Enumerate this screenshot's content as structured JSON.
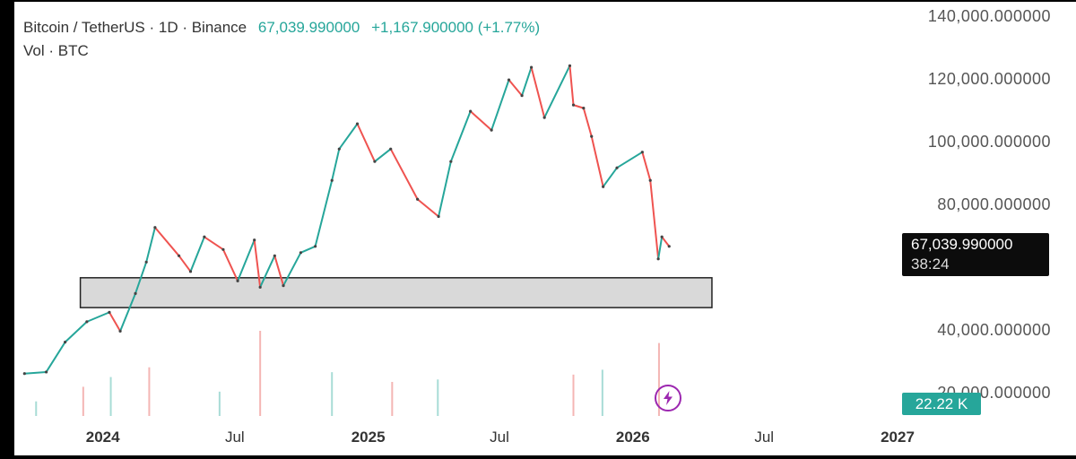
{
  "header": {
    "symbol": "Bitcoin / TetherUS · 1D · Binance",
    "last_price": "67,039.990000",
    "change": "+1,167.900000 (+1.77%)",
    "volume_label": "Vol · BTC"
  },
  "badges": {
    "price": "67,039.990000",
    "countdown": "38:24",
    "volume": "22.22 K"
  },
  "colors": {
    "up": "#26a69a",
    "down": "#ef5350",
    "zone_fill": "#d9d9d9",
    "zone_stroke": "#222222",
    "bolt": "#9c27b0"
  },
  "icons": {
    "bolt": "lightning-bolt-icon"
  },
  "chart_data": {
    "type": "line",
    "title": "",
    "xlabel": "",
    "ylabel": "",
    "y_ticks": [
      "140,000.000000",
      "120,000.000000",
      "100,000.000000",
      "80,000.000000",
      "40,000.000000",
      "20,000.000000"
    ],
    "x_ticks": [
      "2024",
      "Jul",
      "2025",
      "Jul",
      "2026",
      "Jul",
      "2027"
    ],
    "ylim": [
      13000,
      142000
    ],
    "xlim": [
      "2023-09-01",
      "2027-01-01"
    ],
    "series": [
      {
        "x": [
          "2023-09-15",
          "2023-10-15",
          "2023-11-10",
          "2023-12-10",
          "2024-01-10",
          "2024-01-25",
          "2024-02-15",
          "2024-03-01",
          "2024-03-13",
          "2024-04-15",
          "2024-05-01",
          "2024-05-20",
          "2024-06-15",
          "2024-07-05",
          "2024-07-28",
          "2024-08-05",
          "2024-08-25",
          "2024-09-06",
          "2024-09-30",
          "2024-10-20",
          "2024-11-12",
          "2024-11-22",
          "2024-12-17",
          "2025-01-10",
          "2025-02-01",
          "2025-03-10",
          "2025-04-08",
          "2025-04-25",
          "2025-05-22",
          "2025-06-20",
          "2025-07-14",
          "2025-08-01",
          "2025-08-14",
          "2025-09-01",
          "2025-10-06",
          "2025-10-11",
          "2025-10-25",
          "2025-11-05",
          "2025-11-21",
          "2025-12-10",
          "2026-01-14",
          "2026-01-25",
          "2026-02-05",
          "2026-02-10",
          "2026-02-20"
        ],
        "y": [
          26500,
          27000,
          36500,
          43000,
          46000,
          40000,
          52000,
          62000,
          73000,
          64000,
          59000,
          70000,
          66000,
          56000,
          69000,
          54000,
          64000,
          54500,
          65000,
          67000,
          88000,
          98000,
          106000,
          94000,
          98000,
          82000,
          76500,
          94000,
          110000,
          104000,
          120000,
          115000,
          124000,
          108000,
          124500,
          112000,
          111000,
          102000,
          86000,
          92000,
          97000,
          88000,
          63000,
          70000,
          67000
        ]
      }
    ],
    "volume": {
      "x": [
        "2023-10-01",
        "2023-12-05",
        "2024-01-12",
        "2024-03-05",
        "2024-06-10",
        "2024-08-05",
        "2024-11-12",
        "2025-02-03",
        "2025-04-07",
        "2025-10-11",
        "2025-11-20",
        "2026-02-06"
      ],
      "values": [
        6000,
        12000,
        16000,
        20000,
        10000,
        35000,
        18000,
        14000,
        15000,
        17000,
        19000,
        30000
      ]
    },
    "annotations": [
      {
        "type": "rectangle",
        "x0": "2023-12-01",
        "x1": "2026-04-20",
        "y0": 47500,
        "y1": 57000,
        "text": ""
      }
    ]
  }
}
